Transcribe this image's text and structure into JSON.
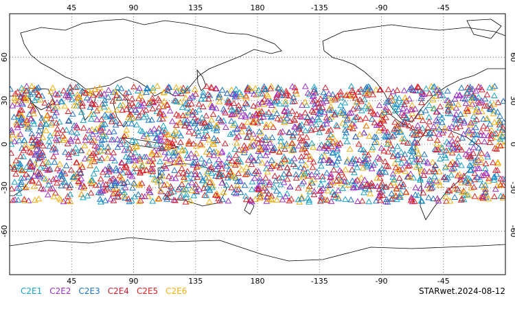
{
  "map": {
    "projection": "equirectangular",
    "center_longitude": 180,
    "lat_range": [
      -90,
      90
    ],
    "top_ticks": [
      "45",
      "90",
      "135",
      "180",
      "-135",
      "-90",
      "-45"
    ],
    "bottom_ticks": [
      "45",
      "90",
      "135",
      "180",
      "-135",
      "-90",
      "-45"
    ],
    "left_ticks": [
      "60",
      "30",
      "0",
      "-30",
      "-60"
    ],
    "right_ticks": [
      "60",
      "30",
      "0",
      "-30",
      "-60"
    ],
    "grid": "dotted",
    "marker": "triangle",
    "obs_lat_band": [
      -40,
      40
    ]
  },
  "legend": [
    {
      "label": "C2E1",
      "color": "#16a3c6"
    },
    {
      "label": "C2E2",
      "color": "#9b2fc8"
    },
    {
      "label": "C2E3",
      "color": "#1e73c8"
    },
    {
      "label": "C2E4",
      "color": "#d4202f"
    },
    {
      "label": "C2E5",
      "color": "#e02020"
    },
    {
      "label": "C2E6",
      "color": "#f2b010"
    }
  ],
  "stamp": "STARwet.2024-08-12"
}
